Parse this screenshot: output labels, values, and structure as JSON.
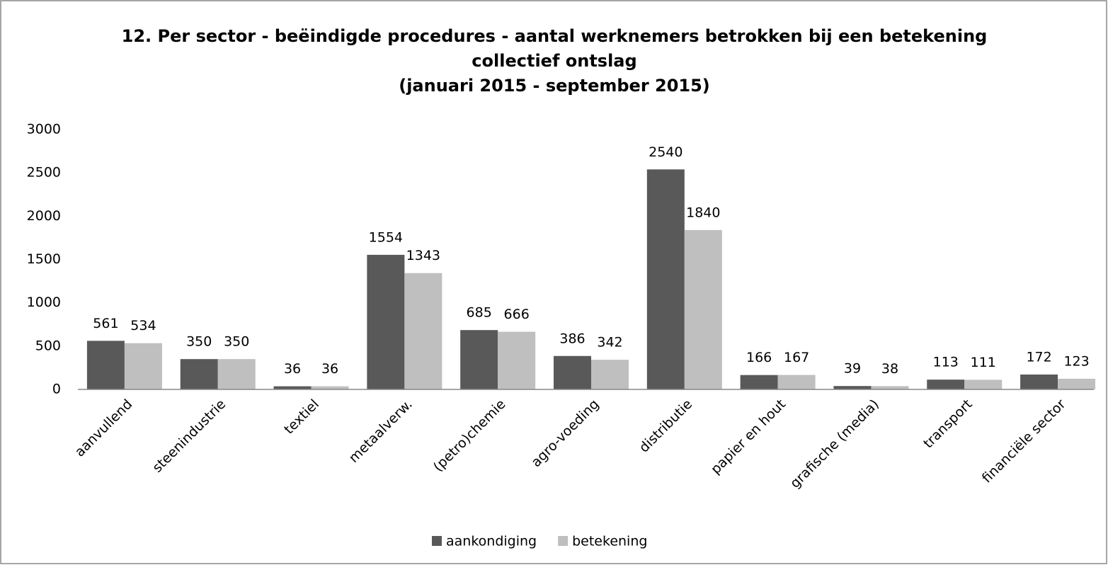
{
  "chart_data": {
    "type": "bar",
    "title": [
      "12. Per sector - beëindigde procedures - aantal werknemers betrokken bij een betekening",
      "collectief ontslag",
      "(januari 2015 -  september 2015)"
    ],
    "categories": [
      "aanvullend",
      "steenindustrie",
      "textiel",
      "metaalverw.",
      "(petro)chemie",
      "agro-voeding",
      "distributie",
      "papier en hout",
      "grafische (media)",
      "transport",
      "financiële sector"
    ],
    "series": [
      {
        "name": "aankondiging",
        "color": "#595959",
        "values": [
          561,
          350,
          36,
          1554,
          685,
          386,
          2540,
          166,
          39,
          113,
          172
        ]
      },
      {
        "name": "betekening",
        "color": "#bfbfbf",
        "values": [
          534,
          350,
          36,
          1343,
          666,
          342,
          1840,
          167,
          38,
          111,
          123
        ]
      }
    ],
    "ylim": [
      0,
      3000
    ],
    "yticks": [
      0,
      500,
      1000,
      1500,
      2000,
      2500,
      3000
    ],
    "grid": false,
    "legend": "bottom"
  }
}
